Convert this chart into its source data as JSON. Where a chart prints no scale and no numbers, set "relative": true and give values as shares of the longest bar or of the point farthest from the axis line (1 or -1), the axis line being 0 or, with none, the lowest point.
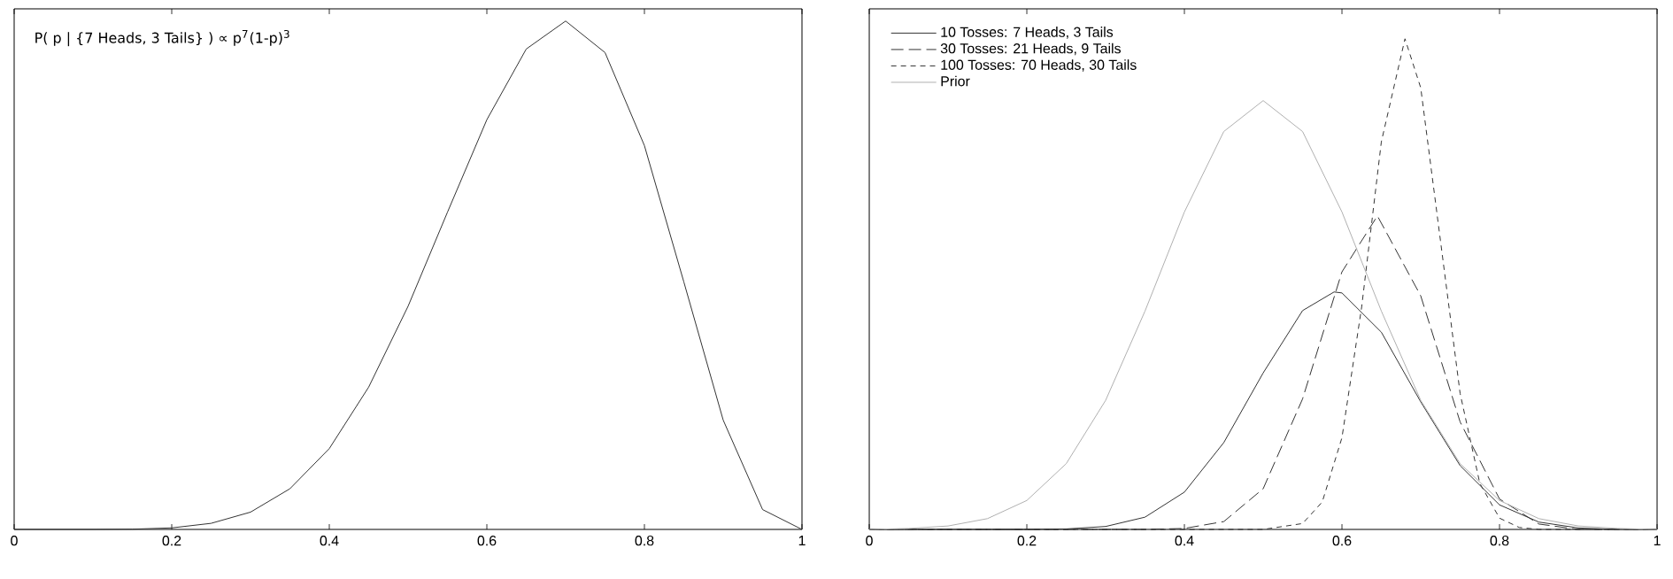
{
  "chart_data": [
    {
      "type": "line",
      "relative": true,
      "xlim": [
        0,
        1
      ],
      "xticks": [
        0,
        0.2,
        0.4,
        0.6,
        0.8,
        1
      ],
      "tick_labels": "x",
      "color": "#333333",
      "annotations": [
        "P( p | {7 Heads, 3 Tails} ) ∝ p$^{7}$(1-p)$^{3}$"
      ],
      "x": [
        0,
        0.05,
        0.1,
        0.15,
        0.2,
        0.25,
        0.3,
        0.35,
        0.4,
        0.45,
        0.5,
        0.55,
        0.6,
        0.65,
        0.7,
        0.75,
        0.8,
        0.85,
        0.9,
        0.95,
        1
      ],
      "values": [
        0,
        0,
        0,
        0.0005,
        0.003,
        0.012,
        0.034,
        0.08,
        0.159,
        0.28,
        0.439,
        0.624,
        0.806,
        0.945,
        1,
        0.938,
        0.755,
        0.487,
        0.215,
        0.039,
        0
      ]
    },
    {
      "type": "line",
      "relative": true,
      "xlim": [
        0,
        1
      ],
      "xticks": [
        0,
        0.2,
        0.4,
        0.6,
        0.8,
        1
      ],
      "tick_labels": "x",
      "legend": "top left",
      "series": [
        {
          "name": "10 Tosses:  7 Heads, 3 Tails",
          "color": "#333333",
          "line_style": "solid",
          "x": [
            0,
            0.2,
            0.25,
            0.3,
            0.35,
            0.4,
            0.45,
            0.5,
            0.55,
            0.59,
            0.6,
            0.65,
            0.7,
            0.75,
            0.8,
            0.85,
            0.9,
            0.95,
            1
          ],
          "values": [
            0,
            0,
            0.001,
            0.006,
            0.025,
            0.076,
            0.177,
            0.319,
            0.446,
            0.484,
            0.482,
            0.402,
            0.26,
            0.13,
            0.05,
            0.015,
            0.003,
            0,
            0
          ]
        },
        {
          "name": "30 Tosses: 21 Heads, 9 Tails",
          "color": "#333333",
          "line_style": "dashed",
          "x": [
            0,
            0.35,
            0.4,
            0.45,
            0.5,
            0.55,
            0.6,
            0.645,
            0.7,
            0.75,
            0.8,
            0.85,
            0.9,
            1
          ],
          "values": [
            0,
            0,
            0.002,
            0.016,
            0.083,
            0.266,
            0.525,
            0.639,
            0.476,
            0.219,
            0.062,
            0.011,
            0,
            0
          ]
        },
        {
          "name": "100 Tosses: 70 Heads, 30 Tails",
          "color": "#333333",
          "line_style": "dotted",
          "x": [
            0,
            0.5,
            0.55,
            0.575,
            0.6,
            0.625,
            0.65,
            0.68,
            0.7,
            0.725,
            0.75,
            0.775,
            0.8,
            0.825,
            0.85,
            1
          ],
          "values": [
            0,
            0,
            0.012,
            0.056,
            0.187,
            0.453,
            0.79,
            1,
            0.9,
            0.589,
            0.277,
            0.094,
            0.023,
            0.004,
            0,
            0
          ]
        },
        {
          "name": "Prior",
          "color": "#b0b0b0",
          "line_style": "solid",
          "x": [
            0,
            0.05,
            0.1,
            0.15,
            0.2,
            0.25,
            0.3,
            0.35,
            0.4,
            0.45,
            0.5,
            0.55,
            0.6,
            0.65,
            0.7,
            0.75,
            0.8,
            0.85,
            0.9,
            0.95,
            1
          ],
          "values": [
            0,
            0.002,
            0.007,
            0.022,
            0.059,
            0.134,
            0.263,
            0.445,
            0.647,
            0.811,
            0.874,
            0.811,
            0.647,
            0.445,
            0.263,
            0.134,
            0.059,
            0.022,
            0.007,
            0.002,
            0
          ]
        }
      ]
    }
  ]
}
